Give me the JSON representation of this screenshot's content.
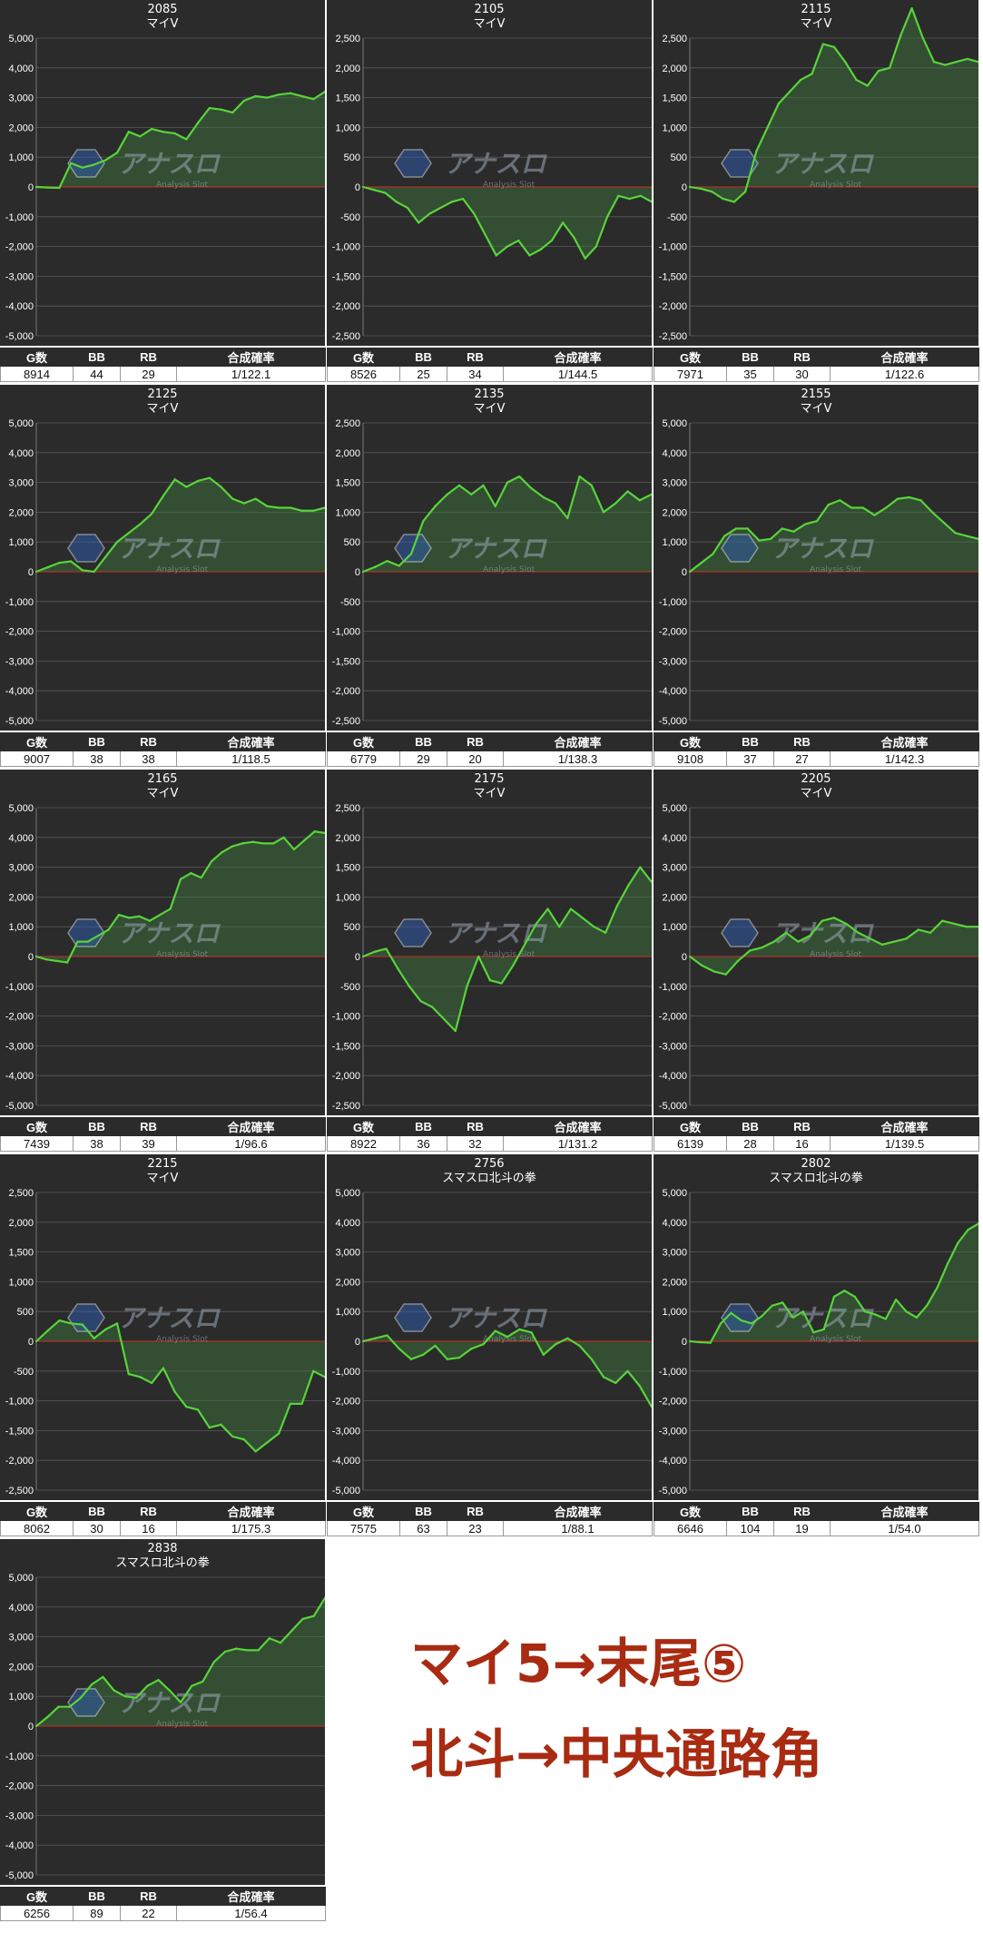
{
  "colors": {
    "line": "#58d43a",
    "fill": "#3f7a3c",
    "zero_line": "#cc1f1f",
    "grid": "#5a5a5a",
    "panel_bg": "#2b2b2b",
    "caption": "#a82b12"
  },
  "watermark": {
    "main": "アナスロ",
    "sub": "Analysis Slot"
  },
  "table_headers": [
    "G数",
    "BB",
    "RB",
    "合成確率"
  ],
  "caption": {
    "line1": "マイ5→末尾⑤",
    "line2": "北斗→中央通路角"
  },
  "chart_data": [
    {
      "type": "line",
      "title": "2085",
      "subtitle": "マイV",
      "ylim": [
        -5000,
        5000
      ],
      "ticks": [
        "5,000",
        "4,000",
        "3,000",
        "2,000",
        "1,000",
        "0",
        "-1,000",
        "-2,000",
        "-3,000",
        "-4,000",
        "-5,000"
      ],
      "values": [
        0,
        -20,
        -30,
        800,
        650,
        750,
        900,
        1150,
        1850,
        1700,
        1950,
        1850,
        1800,
        1600,
        2150,
        2650,
        2600,
        2500,
        2900,
        3050,
        3000,
        3100,
        3150,
        3050,
        2950,
        3200
      ],
      "stats": {
        "games": "8914",
        "bb": "44",
        "rb": "29",
        "rate": "1/122.1"
      }
    },
    {
      "type": "line",
      "title": "2105",
      "subtitle": "マイV",
      "ylim": [
        -2500,
        2500
      ],
      "ticks": [
        "2,500",
        "2,000",
        "1,500",
        "1,000",
        "500",
        "0",
        "-500",
        "-1,000",
        "-1,500",
        "-2,000",
        "-2,500"
      ],
      "values": [
        0,
        -50,
        -100,
        -250,
        -350,
        -600,
        -450,
        -350,
        -250,
        -200,
        -450,
        -800,
        -1150,
        -1000,
        -900,
        -1150,
        -1050,
        -900,
        -600,
        -850,
        -1200,
        -1000,
        -500,
        -150,
        -200,
        -150,
        -250
      ],
      "stats": {
        "games": "8526",
        "bb": "25",
        "rb": "34",
        "rate": "1/144.5"
      }
    },
    {
      "type": "line",
      "title": "2115",
      "subtitle": "マイV",
      "ylim": [
        -2500,
        2500
      ],
      "ticks": [
        "2,500",
        "2,000",
        "1,500",
        "1,000",
        "500",
        "0",
        "-500",
        "-1,000",
        "-1,500",
        "-2,000",
        "-2,500"
      ],
      "values": [
        0,
        -30,
        -80,
        -200,
        -250,
        -80,
        600,
        1000,
        1400,
        1600,
        1800,
        1900,
        2400,
        2350,
        2100,
        1800,
        1700,
        1950,
        2000,
        2550,
        3000,
        2500,
        2100,
        2050,
        2100,
        2150,
        2100
      ],
      "stats": {
        "games": "7971",
        "bb": "35",
        "rb": "30",
        "rate": "1/122.6"
      }
    },
    {
      "type": "line",
      "title": "2125",
      "subtitle": "マイV",
      "ylim": [
        -5000,
        5000
      ],
      "ticks": [
        "5,000",
        "4,000",
        "3,000",
        "2,000",
        "1,000",
        "0",
        "-1,000",
        "-2,000",
        "-3,000",
        "-4,000",
        "-5,000"
      ],
      "values": [
        0,
        150,
        300,
        350,
        50,
        0,
        500,
        1000,
        1300,
        1600,
        1950,
        2550,
        3100,
        2850,
        3050,
        3150,
        2850,
        2450,
        2300,
        2450,
        2200,
        2150,
        2150,
        2050,
        2050,
        2150
      ],
      "stats": {
        "games": "9007",
        "bb": "38",
        "rb": "38",
        "rate": "1/118.5"
      }
    },
    {
      "type": "line",
      "title": "2135",
      "subtitle": "マイV",
      "ylim": [
        -2500,
        2500
      ],
      "ticks": [
        "2,500",
        "2,000",
        "1,500",
        "1,000",
        "500",
        "0",
        "-500",
        "-1,000",
        "-1,500",
        "-2,000",
        "-2,500"
      ],
      "values": [
        0,
        80,
        180,
        100,
        300,
        850,
        1100,
        1300,
        1450,
        1300,
        1450,
        1100,
        1500,
        1600,
        1400,
        1250,
        1150,
        900,
        1600,
        1450,
        1000,
        1150,
        1350,
        1200,
        1300
      ],
      "stats": {
        "games": "6779",
        "bb": "29",
        "rb": "20",
        "rate": "1/138.3"
      }
    },
    {
      "type": "line",
      "title": "2155",
      "subtitle": "マイV",
      "ylim": [
        -5000,
        5000
      ],
      "ticks": [
        "5,000",
        "4,000",
        "3,000",
        "2,000",
        "1,000",
        "0",
        "-1,000",
        "-2,000",
        "-3,000",
        "-4,000",
        "-5,000"
      ],
      "values": [
        0,
        300,
        600,
        1200,
        1450,
        1450,
        1050,
        1100,
        1450,
        1350,
        1600,
        1700,
        2250,
        2400,
        2150,
        2150,
        1900,
        2150,
        2450,
        2500,
        2400,
        2000,
        1650,
        1300,
        1200,
        1100
      ],
      "stats": {
        "games": "9108",
        "bb": "37",
        "rb": "27",
        "rate": "1/142.3"
      }
    },
    {
      "type": "line",
      "title": "2165",
      "subtitle": "マイV",
      "ylim": [
        -5000,
        5000
      ],
      "ticks": [
        "5,000",
        "4,000",
        "3,000",
        "2,000",
        "1,000",
        "0",
        "-1,000",
        "-2,000",
        "-3,000",
        "-4,000",
        "-5,000"
      ],
      "values": [
        0,
        -100,
        -150,
        -200,
        500,
        500,
        700,
        900,
        1400,
        1300,
        1350,
        1200,
        1400,
        1600,
        2600,
        2800,
        2650,
        3200,
        3500,
        3700,
        3800,
        3850,
        3800,
        3800,
        4000,
        3600,
        3900,
        4200,
        4150
      ],
      "stats": {
        "games": "7439",
        "bb": "38",
        "rb": "39",
        "rate": "1/96.6"
      }
    },
    {
      "type": "line",
      "title": "2175",
      "subtitle": "マイV",
      "ylim": [
        -2500,
        2500
      ],
      "ticks": [
        "2,500",
        "2,000",
        "1,500",
        "1,000",
        "500",
        "0",
        "-500",
        "-1,000",
        "-1,500",
        "-2,000",
        "-2,500"
      ],
      "values": [
        0,
        80,
        130,
        -200,
        -500,
        -750,
        -850,
        -1050,
        -1250,
        -500,
        0,
        -400,
        -450,
        -150,
        200,
        550,
        800,
        500,
        800,
        650,
        500,
        400,
        850,
        1200,
        1500,
        1250
      ],
      "stats": {
        "games": "8922",
        "bb": "36",
        "rb": "32",
        "rate": "1/131.2"
      }
    },
    {
      "type": "line",
      "title": "2205",
      "subtitle": "マイV",
      "ylim": [
        -5000,
        5000
      ],
      "ticks": [
        "5,000",
        "4,000",
        "3,000",
        "2,000",
        "1,000",
        "0",
        "-1,000",
        "-2,000",
        "-3,000",
        "-4,000",
        "-5,000"
      ],
      "values": [
        0,
        -300,
        -500,
        -600,
        -150,
        200,
        300,
        500,
        800,
        500,
        700,
        1200,
        1300,
        1100,
        800,
        600,
        400,
        500,
        600,
        900,
        800,
        1200,
        1100,
        1000,
        1000
      ],
      "stats": {
        "games": "6139",
        "bb": "28",
        "rb": "16",
        "rate": "1/139.5"
      }
    },
    {
      "type": "line",
      "title": "2215",
      "subtitle": "マイV",
      "ylim": [
        -2500,
        2500
      ],
      "ticks": [
        "2,500",
        "2,000",
        "1,500",
        "1,000",
        "500",
        "0",
        "-500",
        "-1,000",
        "-1,500",
        "-2,000",
        "-2,500"
      ],
      "values": [
        0,
        180,
        350,
        300,
        280,
        50,
        200,
        300,
        -550,
        -600,
        -700,
        -450,
        -850,
        -1100,
        -1150,
        -1450,
        -1400,
        -1600,
        -1650,
        -1850,
        -1700,
        -1550,
        -1050,
        -1050,
        -500,
        -600
      ],
      "stats": {
        "games": "8062",
        "bb": "30",
        "rb": "16",
        "rate": "1/175.3"
      }
    },
    {
      "type": "line",
      "title": "2756",
      "subtitle": "スマスロ北斗の拳",
      "ylim": [
        -5000,
        5000
      ],
      "ticks": [
        "5,000",
        "4,000",
        "3,000",
        "2,000",
        "1,000",
        "0",
        "-1,000",
        "-2,000",
        "-3,000",
        "-4,000",
        "-5,000"
      ],
      "values": [
        0,
        100,
        200,
        -250,
        -600,
        -450,
        -150,
        -600,
        -550,
        -250,
        -100,
        350,
        150,
        400,
        300,
        -450,
        -100,
        100,
        -150,
        -600,
        -1200,
        -1400,
        -1000,
        -1500,
        -2200
      ],
      "stats": {
        "games": "7575",
        "bb": "63",
        "rb": "23",
        "rate": "1/88.1"
      }
    },
    {
      "type": "line",
      "title": "2802",
      "subtitle": "スマスロ北斗の拳",
      "ylim": [
        -5000,
        5000
      ],
      "ticks": [
        "5,000",
        "4,000",
        "3,000",
        "2,000",
        "1,000",
        "0",
        "-1,000",
        "-2,000",
        "-3,000",
        "-4,000",
        "-5,000"
      ],
      "values": [
        0,
        -30,
        -50,
        600,
        950,
        700,
        600,
        850,
        1200,
        1300,
        800,
        1000,
        300,
        400,
        1500,
        1700,
        1500,
        1000,
        900,
        750,
        1400,
        1000,
        800,
        1200,
        1800,
        2600,
        3300,
        3750,
        3950
      ],
      "stats": {
        "games": "6646",
        "bb": "104",
        "rb": "19",
        "rate": "1/54.0"
      }
    },
    {
      "type": "line",
      "title": "2838",
      "subtitle": "スマスロ北斗の拳",
      "ylim": [
        -5000,
        5000
      ],
      "ticks": [
        "5,000",
        "4,000",
        "3,000",
        "2,000",
        "1,000",
        "0",
        "-1,000",
        "-2,000",
        "-3,000",
        "-4,000",
        "-5,000"
      ],
      "values": [
        0,
        300,
        650,
        650,
        950,
        1400,
        1650,
        1200,
        1000,
        950,
        1350,
        1550,
        1200,
        800,
        1350,
        1500,
        2150,
        2500,
        2600,
        2550,
        2550,
        2950,
        2800,
        3200,
        3600,
        3700,
        4300
      ],
      "stats": {
        "games": "6256",
        "bb": "89",
        "rb": "22",
        "rate": "1/56.4"
      }
    }
  ]
}
